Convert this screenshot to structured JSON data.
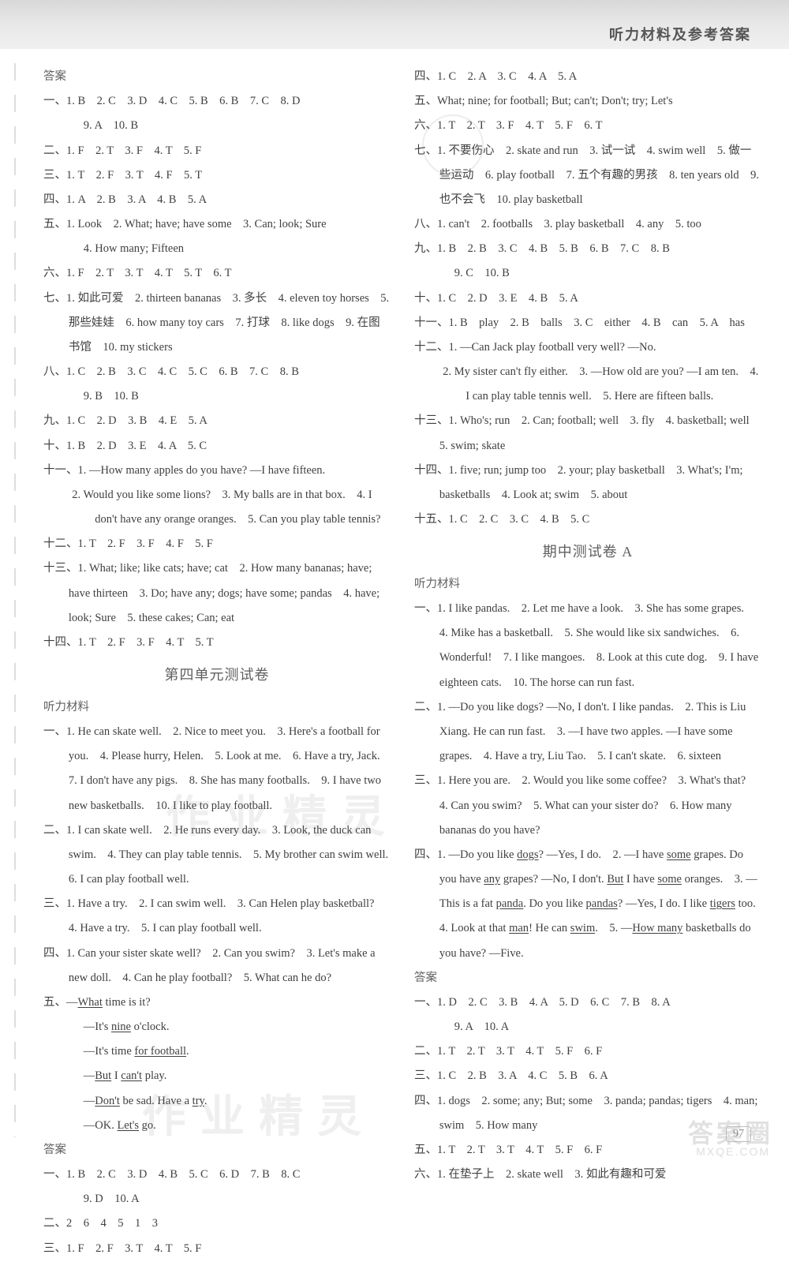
{
  "header": {
    "title": "听力材料及参考答案"
  },
  "page_number": "97",
  "watermarks": {
    "wm1": "作业精灵",
    "wm2": "作业精灵",
    "logo": "答案圈",
    "url": "MXQE.COM"
  },
  "left": {
    "ans_label": "答案",
    "s1": "一、1. B　2. C　3. D　4. C　5. B　6. B　7. C　8. D",
    "s1b": "9. A　10. B",
    "s2": "二、1. F　2. T　3. F　4. T　5. F",
    "s3": "三、1. T　2. F　3. T　4. F　5. T",
    "s4": "四、1. A　2. B　3. A　4. B　5. A",
    "s5": "五、1. Look　2. What; have; have some　3. Can; look; Sure",
    "s5b": "4. How many; Fifteen",
    "s6": "六、1. F　2. T　3. T　4. T　5. T　6. T",
    "s7": "七、1. 如此可爱　2. thirteen bananas　3. 多长　4. eleven toy horses　5. 那些娃娃　6. how many toy cars　7. 打球　8. like dogs　9. 在图书馆　10. my stickers",
    "s8": "八、1. C　2. B　3. C　4. C　5. C　6. B　7. C　8. B",
    "s8b": "9. B　10. B",
    "s9": "九、1. C　2. D　3. B　4. E　5. A",
    "s10": "十、1. B　2. D　3. E　4. A　5. C",
    "s11": "十一、1. —How many apples do you have? —I have fifteen.",
    "s11b": "2. Would you like some lions?　3. My balls are in that box.　4. I don't have any orange oranges.　5. Can you play table tennis?",
    "s12": "十二、1. T　2. F　3. F　4. F　5. F",
    "s13": "十三、1. What; like; like cats; have; cat　2. How many bananas; have; have thirteen　3. Do; have any; dogs; have some; pandas　4. have; look; Sure　5. these cakes; Can; eat",
    "s14": "十四、1. T　2. F　3. F　4. T　5. T",
    "unit_title": "第四单元测试卷",
    "listen_label": "听力材料",
    "l1": "一、1. He can skate well.　2. Nice to meet you.　3. Here's a football for you.　4. Please hurry, Helen.　5. Look at me.　6. Have a try, Jack.　7. I don't have any pigs.　8. She has many footballs.　9. I have two new basketballs.　10. I like to play football.",
    "l2": "二、1. I can skate well.　2. He runs every day.　3. Look, the duck can swim.　4. They can play table tennis.　5. My brother can swim well.　6. I can play football well.",
    "l3": "三、1. Have a try.　2. I can swim well.　3. Can Helen play basketball?　4. Have a try.　5. I can play football well.",
    "l4": "四、1. Can your sister skate well?　2. Can you swim?　3. Let's make a new doll.　4. Can he play football?　5. What can he do?",
    "l5a": "五、—",
    "l5a_u": "What",
    "l5a_t": " time is it?",
    "l5b_a": "—It's ",
    "l5b_u": "nine",
    "l5b_b": " o'clock.",
    "l5c_a": "—It's time ",
    "l5c_u": "for football",
    "l5c_b": ".",
    "l5d_a": "—",
    "l5d_u1": "But",
    "l5d_m": " I ",
    "l5d_u2": "can't",
    "l5d_b": " play.",
    "l5e_a": "—",
    "l5e_u": "Don't",
    "l5e_m": " be sad. Have a ",
    "l5e_u2": "try",
    "l5e_b": ".",
    "l5f_a": "—OK. ",
    "l5f_u": "Let's",
    "l5f_b": " go.",
    "ans2_label": "答案",
    "a1": "一、1. B　2. C　3. D　4. B　5. C　6. D　7. B　8. C",
    "a1b": "9. D　10. A",
    "a2": "二、2　6　4　5　1　3",
    "a3": "三、1. F　2. F　3. T　4. T　5. F"
  },
  "right": {
    "r4": "四、1. C　2. A　3. C　4. A　5. A",
    "r5": "五、What; nine; for football; But; can't; Don't; try; Let's",
    "r6": "六、1. T　2. T　3. F　4. T　5. F　6. T",
    "r7": "七、1. 不要伤心　2. skate and run　3. 试一试　4. swim well　5. 做一些运动　6. play football　7. 五个有趣的男孩　8. ten years old　9. 也不会飞　10. play basketball",
    "r8": "八、1. can't　2. footballs　3. play basketball　4. any　5. too",
    "r9": "九、1. B　2. B　3. C　4. B　5. B　6. B　7. C　8. B",
    "r9b": "9. C　10. B",
    "r10": "十、1. C　2. D　3. E　4. B　5. A",
    "r11": "十一、1. B　play　2. B　balls　3. C　either　4. B　can　5. A　has",
    "r12": "十二、1. —Can Jack play football very well? —No.",
    "r12b": "2. My sister can't fly either.　3. —How old are you? —I am ten.　4. I can play table tennis well.　5. Here are fifteen balls.",
    "r13": "十三、1. Who's; run　2. Can; football; well　3. fly　4. basketball; well　5. swim; skate",
    "r14": "十四、1. five; run; jump too　2. your; play basketball　3. What's; I'm; basketballs　4. Look at; swim　5. about",
    "r15": "十五、1. C　2. C　3. C　4. B　5. C",
    "mid_title": "期中测试卷 A",
    "listen_label": "听力材料",
    "m1": "一、1. I like pandas.　2. Let me have a look.　3. She has some grapes.　4. Mike has a basketball.　5. She would like six sandwiches.　6. Wonderful!　7. I like mangoes.　8. Look at this cute dog.　9. I have eighteen cats.　10. The horse can run fast.",
    "m2": "二、1. —Do you like dogs? —No, I don't. I like pandas.　2. This is Liu Xiang. He can run fast.　3. —I have two apples. —I have some grapes.　4. Have a try, Liu Tao.　5. I can't skate.　6. sixteen",
    "m3": "三、1. Here you are.　2. Would you like some coffee?　3. What's that?　4. Can you swim?　5. What can your sister do?　6. How many bananas do you have?",
    "m4a": "四、1. —Do you like ",
    "m4a_u": "dogs",
    "m4a_b": "? —Yes, I do.　2. —I have ",
    "m4a_u2": "some",
    "m4b_a": " grapes. Do you have ",
    "m4b_u": "any",
    "m4b_b": " grapes? —No, I don't. ",
    "m4b_u2": "But",
    "m4b_c": " I have ",
    "m4b_u3": "some",
    "m4b_d": " oranges.　3. —This is a fat ",
    "m4b_u4": "panda",
    "m4b_e": ". Do you like ",
    "m4c_u": "pandas",
    "m4c_a": "? —Yes, I do. I like ",
    "m4c_u2": "tigers",
    "m4c_b": " too.　4. Look at that ",
    "m4d_u": "man",
    "m4d_a": "! He can ",
    "m4d_u2": "swim",
    "m4d_b": ".　5. —",
    "m4d_u3": "How many",
    "m4d_c": " basketballs do you have? —Five.",
    "ans_label": "答案",
    "ma1": "一、1. D　2. C　3. B　4. A　5. D　6. C　7. B　8. A",
    "ma1b": "9. A　10. A",
    "ma2": "二、1. T　2. T　3. T　4. T　5. F　6. F",
    "ma3": "三、1. C　2. B　3. A　4. C　5. B　6. A",
    "ma4": "四、1. dogs　2. some; any; But; some　3. panda; pandas; tigers　4. man; swim　5. How many",
    "ma5": "五、1. T　2. T　3. T　4. T　5. F　6. F",
    "ma6": "六、1. 在垫子上　2. skate well　3. 如此有趣和可爱"
  }
}
